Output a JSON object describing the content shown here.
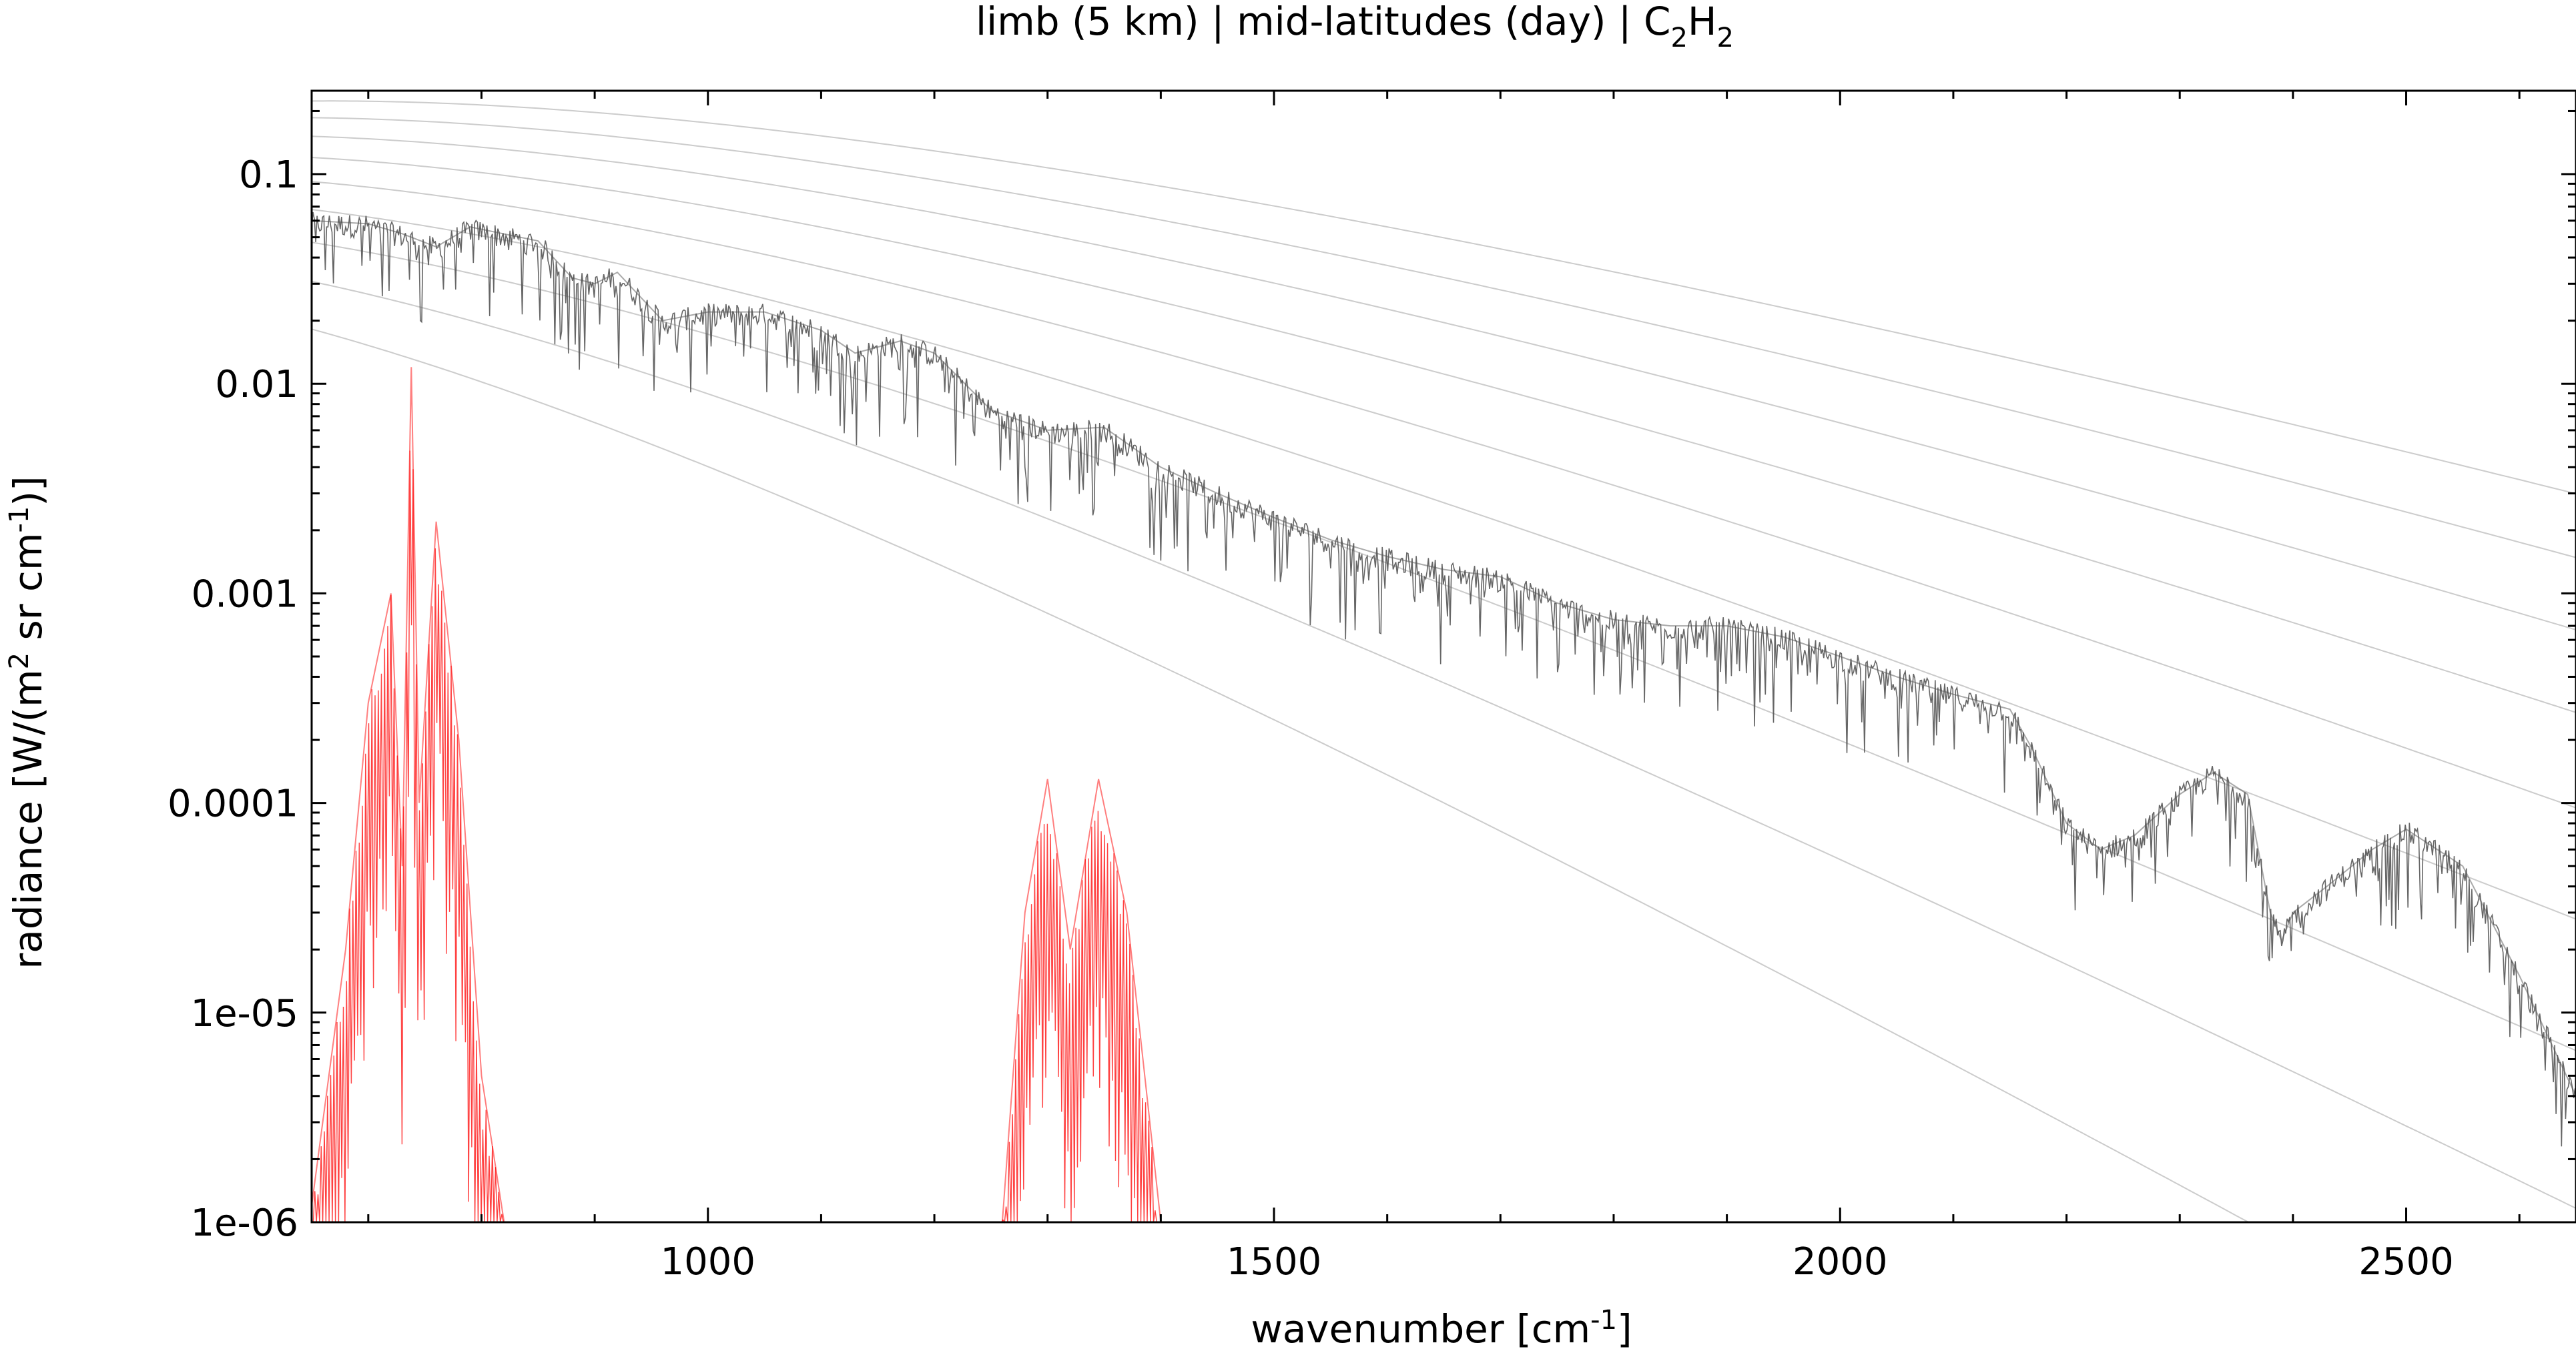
{
  "chart_data": {
    "type": "line",
    "title": {
      "pre": "limb (5 km) | mid-latitudes (day) | C",
      "sub1": "2",
      "mid": "H",
      "sub2": "2"
    },
    "xlabel": {
      "pre": "wavenumber [cm",
      "sup": "-1",
      "post": "]"
    },
    "ylabel": {
      "pre": "radiance [W/(m",
      "sup1": "2",
      "mid": " sr cm",
      "sup2": "-1",
      "post": ")]"
    },
    "xlim": [
      650,
      2650
    ],
    "ylim": [
      1e-06,
      0.25
    ],
    "yscale": "log",
    "grid": false,
    "x_ticks": [
      {
        "value": 1000,
        "label": "1000"
      },
      {
        "value": 1500,
        "label": "1500"
      },
      {
        "value": 2000,
        "label": "2000"
      },
      {
        "value": 2500,
        "label": "2500"
      }
    ],
    "y_ticks": [
      {
        "value": 0.1,
        "label": "0.1"
      },
      {
        "value": 0.01,
        "label": "0.01"
      },
      {
        "value": 0.001,
        "label": "0.001"
      },
      {
        "value": 0.0001,
        "label": "0.0001"
      },
      {
        "value": 1e-05,
        "label": "1e-05"
      },
      {
        "value": 1e-06,
        "label": "1e-06"
      }
    ],
    "planck_reference_temperatures_K": [
      180,
      200,
      220,
      240,
      260,
      280,
      300,
      320,
      340
    ],
    "series": [
      {
        "color": "#555555",
        "points": [
          [
            650,
            0.06
          ],
          [
            700,
            0.058
          ],
          [
            730,
            0.052
          ],
          [
            760,
            0.045
          ],
          [
            790,
            0.056
          ],
          [
            850,
            0.048
          ],
          [
            880,
            0.032
          ],
          [
            900,
            0.03
          ],
          [
            920,
            0.034
          ],
          [
            960,
            0.02
          ],
          [
            1000,
            0.022
          ],
          [
            1050,
            0.022
          ],
          [
            1100,
            0.018
          ],
          [
            1130,
            0.014
          ],
          [
            1170,
            0.016
          ],
          [
            1200,
            0.014
          ],
          [
            1250,
            0.0075
          ],
          [
            1300,
            0.006
          ],
          [
            1350,
            0.0062
          ],
          [
            1400,
            0.004
          ],
          [
            1450,
            0.003
          ],
          [
            1500,
            0.0023
          ],
          [
            1550,
            0.0018
          ],
          [
            1600,
            0.0015
          ],
          [
            1650,
            0.0013
          ],
          [
            1700,
            0.0012
          ],
          [
            1750,
            0.0009
          ],
          [
            1800,
            0.00075
          ],
          [
            1850,
            0.0007
          ],
          [
            1900,
            0.0007
          ],
          [
            1950,
            0.00062
          ],
          [
            2000,
            0.0005
          ],
          [
            2050,
            0.0004
          ],
          [
            2100,
            0.00033
          ],
          [
            2150,
            0.00028
          ],
          [
            2170,
            0.00018
          ],
          [
            2200,
            8e-05
          ],
          [
            2230,
            6e-05
          ],
          [
            2260,
            7e-05
          ],
          [
            2300,
            0.00011
          ],
          [
            2330,
            0.00014
          ],
          [
            2360,
            0.00011
          ],
          [
            2380,
            3e-05
          ],
          [
            2390,
            2.2e-05
          ],
          [
            2400,
            3e-05
          ],
          [
            2430,
            4e-05
          ],
          [
            2470,
            6e-05
          ],
          [
            2500,
            7.5e-05
          ],
          [
            2550,
            5e-05
          ],
          [
            2600,
            1.5e-05
          ],
          [
            2650,
            4e-06
          ]
        ]
      },
      {
        "color": "#ff0000",
        "points": [
          [
            650,
            1.2e-06
          ],
          [
            680,
            2e-05
          ],
          [
            700,
            0.0003
          ],
          [
            720,
            0.001
          ],
          [
            730,
            5e-05
          ],
          [
            738,
            0.012
          ],
          [
            745,
            0.0001
          ],
          [
            760,
            0.0022
          ],
          [
            780,
            0.0002
          ],
          [
            800,
            5e-06
          ],
          [
            820,
            1e-06
          ],
          [
            1260,
            1e-06
          ],
          [
            1280,
            3e-05
          ],
          [
            1300,
            0.00013
          ],
          [
            1320,
            2e-05
          ],
          [
            1345,
            0.00013
          ],
          [
            1370,
            3e-05
          ],
          [
            1400,
            1e-06
          ]
        ]
      }
    ]
  }
}
